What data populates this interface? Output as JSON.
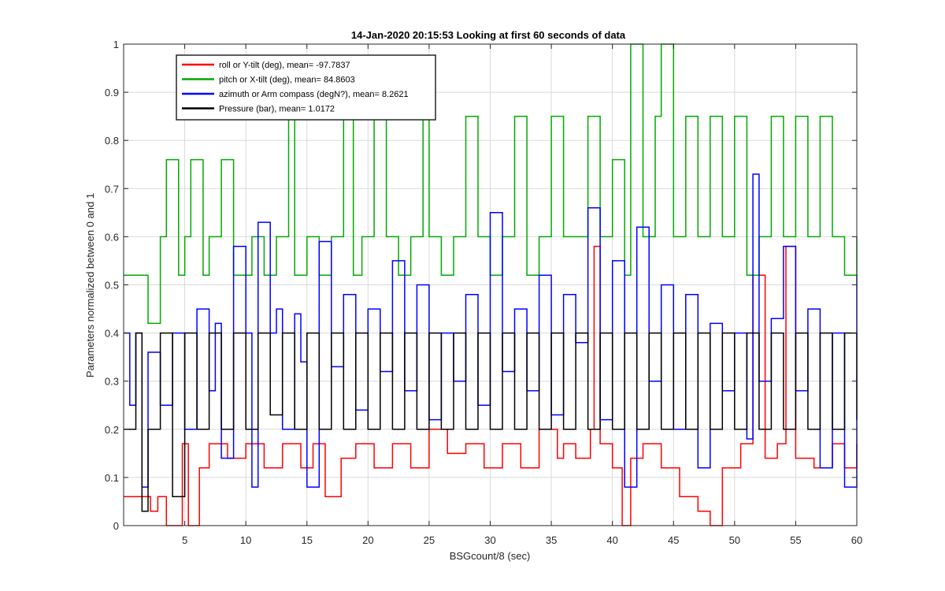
{
  "chart_data": {
    "type": "line",
    "title": "14-Jan-2020 20:15:53 Looking at first 60 seconds of data",
    "xlabel": "BSGcount/8 (sec)",
    "ylabel": "Parameters normalized between 0 and 1",
    "xlim": [
      0,
      60
    ],
    "ylim": [
      0,
      1
    ],
    "xticks": [
      5,
      10,
      15,
      20,
      25,
      30,
      35,
      40,
      45,
      50,
      55,
      60
    ],
    "yticks": [
      0,
      0.1,
      0.2,
      0.3,
      0.4,
      0.5,
      0.6,
      0.7,
      0.8,
      0.9,
      1
    ],
    "xtick_labels": [
      "5",
      "10",
      "15",
      "20",
      "25",
      "30",
      "35",
      "40",
      "45",
      "50",
      "55",
      "60"
    ],
    "ytick_labels": [
      "0",
      "0.1",
      "0.2",
      "0.3",
      "0.4",
      "0.5",
      "0.6",
      "0.7",
      "0.8",
      "0.9",
      "1"
    ],
    "grid": true,
    "legend_position": "top-left",
    "series": [
      {
        "name": "roll or Y-tilt (deg), mean= -97.7837",
        "color": "#ff0000",
        "x": [
          0,
          1.5,
          2.2,
          2.8,
          3.5,
          4.8,
          5.3,
          6.2,
          7.0,
          8.5,
          10.0,
          11.5,
          13.0,
          14.5,
          15.5,
          16.5,
          17.8,
          19.0,
          20.5,
          22.0,
          23.5,
          25.0,
          26.5,
          28.0,
          29.5,
          31.0,
          32.5,
          34.0,
          35.5,
          36.0,
          37.0,
          38.2,
          38.5,
          39.0,
          40.0,
          40.8,
          41.5,
          42.5,
          44.0,
          45.5,
          47.0,
          48.0,
          49.0,
          50.5,
          51.5,
          52.5,
          53.5,
          54.2,
          55.0,
          56.5,
          58.0,
          59.0,
          60.0
        ],
        "y": [
          0.06,
          0.06,
          0.03,
          0.06,
          0.0,
          0.17,
          0.0,
          0.12,
          0.17,
          0.14,
          0.17,
          0.12,
          0.17,
          0.12,
          0.17,
          0.06,
          0.14,
          0.17,
          0.12,
          0.17,
          0.12,
          0.2,
          0.15,
          0.17,
          0.12,
          0.17,
          0.12,
          0.2,
          0.14,
          0.17,
          0.14,
          0.2,
          0.58,
          0.17,
          0.12,
          0.0,
          0.14,
          0.17,
          0.12,
          0.06,
          0.03,
          0.0,
          0.12,
          0.17,
          0.52,
          0.14,
          0.17,
          0.58,
          0.14,
          0.12,
          0.17,
          0.12,
          0.17
        ]
      },
      {
        "name": "pitch or X-tilt (deg), mean= 84.8603",
        "color": "#00aa00",
        "x": [
          0,
          1.5,
          2.0,
          3.0,
          3.5,
          4.5,
          5.0,
          5.5,
          6.5,
          7.0,
          8.0,
          9.0,
          10.5,
          11.5,
          12.5,
          13.5,
          14.0,
          15.0,
          16.0,
          17.0,
          18.0,
          18.8,
          19.5,
          20.5,
          21.5,
          22.5,
          23.5,
          24.5,
          25.0,
          26.0,
          27.0,
          28.0,
          29.0,
          30.0,
          31.0,
          32.0,
          33.0,
          34.0,
          35.0,
          36.0,
          37.0,
          38.0,
          39.0,
          40.0,
          41.0,
          41.5,
          42.5,
          43.5,
          44.0,
          45.0,
          46.0,
          47.0,
          48.0,
          49.0,
          50.0,
          51.0,
          52.0,
          53.0,
          54.0,
          55.0,
          56.0,
          57.0,
          58.0,
          59.0,
          60.0
        ],
        "y": [
          0.52,
          0.52,
          0.42,
          0.6,
          0.76,
          0.52,
          0.6,
          0.76,
          0.52,
          0.6,
          0.76,
          0.52,
          0.6,
          0.52,
          0.6,
          0.85,
          0.52,
          0.6,
          0.52,
          0.6,
          0.85,
          0.52,
          0.6,
          0.85,
          0.6,
          0.52,
          0.6,
          0.85,
          0.6,
          0.52,
          0.6,
          0.85,
          0.6,
          0.52,
          0.6,
          0.85,
          0.52,
          0.6,
          0.85,
          0.6,
          0.6,
          0.85,
          0.6,
          0.76,
          0.52,
          1.0,
          0.6,
          0.85,
          1.0,
          0.6,
          0.85,
          0.6,
          0.85,
          0.6,
          0.85,
          0.52,
          0.6,
          0.85,
          0.6,
          0.85,
          0.6,
          0.85,
          0.6,
          0.52,
          0.6
        ]
      },
      {
        "name": "azimuth or Arm compass (degN?), mean= 8.2621",
        "color": "#0000ff",
        "x": [
          0,
          0.5,
          1.0,
          1.5,
          2.0,
          3.0,
          4.0,
          5.0,
          6.0,
          7.0,
          7.5,
          8.0,
          9.0,
          10.0,
          10.5,
          11.0,
          12.0,
          12.5,
          13.0,
          14.0,
          14.5,
          15.0,
          16.0,
          17.0,
          18.0,
          19.0,
          20.0,
          21.0,
          22.0,
          23.0,
          24.0,
          25.0,
          26.0,
          27.0,
          28.0,
          29.0,
          30.0,
          31.0,
          32.0,
          33.0,
          34.0,
          35.0,
          36.0,
          37.0,
          38.0,
          39.0,
          40.0,
          41.0,
          42.0,
          43.0,
          44.0,
          45.0,
          46.0,
          47.0,
          48.0,
          49.0,
          50.0,
          51.0,
          51.5,
          52.0,
          53.0,
          54.0,
          55.0,
          56.0,
          57.0,
          58.0,
          59.0,
          60.0
        ],
        "y": [
          0.4,
          0.25,
          0.4,
          0.08,
          0.36,
          0.25,
          0.4,
          0.2,
          0.45,
          0.28,
          0.42,
          0.14,
          0.58,
          0.4,
          0.08,
          0.63,
          0.4,
          0.45,
          0.2,
          0.44,
          0.34,
          0.08,
          0.59,
          0.33,
          0.48,
          0.24,
          0.45,
          0.32,
          0.55,
          0.28,
          0.5,
          0.22,
          0.4,
          0.3,
          0.48,
          0.25,
          0.65,
          0.32,
          0.45,
          0.28,
          0.52,
          0.23,
          0.48,
          0.38,
          0.66,
          0.22,
          0.55,
          0.08,
          0.62,
          0.3,
          0.5,
          0.2,
          0.48,
          0.12,
          0.42,
          0.28,
          0.4,
          0.18,
          0.73,
          0.3,
          0.43,
          0.58,
          0.28,
          0.45,
          0.12,
          0.4,
          0.08,
          0.52
        ]
      },
      {
        "name": "Pressure (bar), mean= 1.0172",
        "color": "#000000",
        "x": [
          0,
          1.0,
          1.5,
          2.0,
          3.0,
          4.0,
          5.0,
          6.0,
          7.0,
          8.0,
          9.0,
          10.0,
          11.0,
          12.0,
          13.0,
          14.0,
          15.0,
          16.0,
          17.0,
          18.0,
          19.0,
          20.0,
          21.0,
          22.0,
          23.0,
          24.0,
          25.0,
          26.0,
          27.0,
          28.0,
          29.0,
          30.0,
          31.0,
          32.0,
          33.0,
          34.0,
          35.0,
          36.0,
          37.0,
          38.0,
          39.0,
          40.0,
          41.0,
          42.0,
          43.0,
          44.0,
          45.0,
          46.0,
          47.0,
          48.0,
          49.0,
          50.0,
          51.0,
          52.0,
          53.0,
          54.0,
          55.0,
          56.0,
          57.0,
          58.0,
          59.0,
          60.0
        ],
        "y": [
          0.2,
          0.4,
          0.03,
          0.2,
          0.4,
          0.06,
          0.4,
          0.2,
          0.4,
          0.2,
          0.4,
          0.2,
          0.4,
          0.23,
          0.4,
          0.2,
          0.4,
          0.2,
          0.4,
          0.2,
          0.4,
          0.2,
          0.4,
          0.2,
          0.4,
          0.2,
          0.4,
          0.2,
          0.4,
          0.2,
          0.4,
          0.2,
          0.4,
          0.2,
          0.4,
          0.2,
          0.4,
          0.2,
          0.4,
          0.2,
          0.4,
          0.2,
          0.4,
          0.2,
          0.4,
          0.2,
          0.4,
          0.2,
          0.4,
          0.2,
          0.4,
          0.2,
          0.4,
          0.2,
          0.4,
          0.2,
          0.4,
          0.2,
          0.4,
          0.2,
          0.4,
          0.22
        ]
      }
    ]
  }
}
